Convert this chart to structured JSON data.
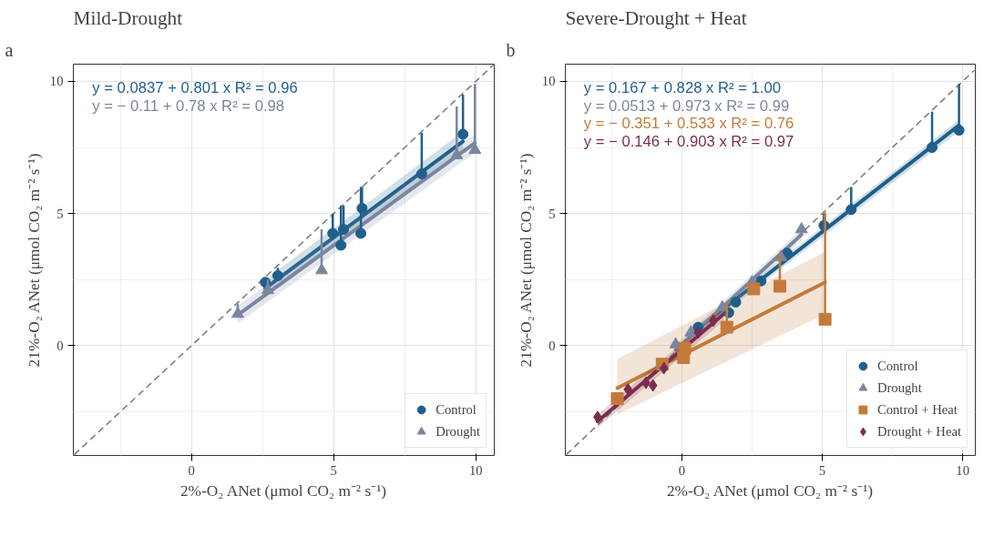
{
  "chart_data": [
    {
      "type": "scatter",
      "title": "Mild-Drought",
      "xlabel": "2%-O₂ ANet (μmol CO₂ m⁻² s⁻¹)",
      "ylabel": "21%-O₂ ANet (μmol CO₂ m⁻² s⁻¹)",
      "annotations": [
        "a",
        "y = 0.0837 + 0.801 x   R² = 0.96",
        "y = − 0.11 + 0.78 x   R² = 0.98"
      ],
      "xlim": [
        -4.15,
        10.65
      ],
      "ylim": [
        -4.15,
        10.65
      ],
      "xticks": [
        0,
        5,
        10
      ],
      "yticks": [
        0,
        5,
        10
      ],
      "grid": true,
      "legend": "bottom right",
      "series": [
        {
          "type": "line",
          "color": "#7f7f7f",
          "line_style": "dashed",
          "marker": "none",
          "x": [
            -4.1,
            10.6
          ],
          "values": [
            -4.1,
            10.6
          ]
        },
        {
          "type": "line",
          "color": "#1f5f8b",
          "marker": "none",
          "x": [
            2.6,
            9.55
          ],
          "values": [
            2.17,
            7.73
          ],
          "lower": [
            1.85,
            7.35
          ],
          "upper": [
            2.5,
            8.1
          ]
        },
        {
          "type": "line",
          "color": "#7a86a0",
          "marker": "none",
          "x": [
            1.63,
            9.97
          ],
          "values": [
            1.16,
            7.67
          ],
          "lower": [
            0.85,
            7.3
          ],
          "upper": [
            1.5,
            8.0
          ]
        },
        {
          "name": "Control",
          "color": "#1f5f8b",
          "marker": "circle",
          "x": [
            2.6,
            3.04,
            4.97,
            5.35,
            5.26,
            6.0,
            5.96,
            8.1,
            9.55
          ],
          "values": [
            2.4,
            2.65,
            4.25,
            4.4,
            3.8,
            5.2,
            4.25,
            6.5,
            8.0
          ],
          "errors": [
            null,
            [
              2.65,
              2.95
            ],
            [
              4.25,
              5.0
            ],
            [
              4.4,
              5.3
            ],
            [
              3.8,
              5.3
            ],
            [
              5.2,
              6.0
            ],
            [
              4.25,
              6.0
            ],
            [
              6.5,
              8.05
            ],
            [
              8.0,
              9.5
            ]
          ]
        },
        {
          "name": "Drought",
          "color": "#7a86a0",
          "marker": "triangle",
          "x": [
            1.63,
            2.69,
            4.58,
            9.33,
            9.97
          ],
          "values": [
            1.2,
            2.1,
            2.85,
            7.2,
            7.4
          ],
          "errors": [
            [
              1.2,
              1.6
            ],
            [
              2.1,
              2.5
            ],
            [
              2.85,
              4.4
            ],
            [
              7.2,
              9.05
            ],
            [
              7.4,
              9.9
            ]
          ]
        }
      ]
    },
    {
      "type": "scatter",
      "title": "Severe-Drought + Heat",
      "xlabel": "2%-O₂ ANet (μmol CO₂ m⁻² s⁻¹)",
      "ylabel": "21%-O₂ ANet (μmol CO₂ m⁻² s⁻¹)",
      "annotations": [
        "b",
        "y = 0.167 + 0.828 x   R² = 1.00",
        "y = 0.0513 + 0.973 x   R² = 0.99",
        "y = − 0.351 + 0.533 x   R² = 0.76",
        "y = − 0.146 + 0.903 x   R² = 0.97"
      ],
      "xlim": [
        -4.15,
        10.45
      ],
      "ylim": [
        -4.15,
        10.65
      ],
      "xticks": [
        0,
        5,
        10
      ],
      "yticks": [
        0,
        5,
        10
      ],
      "grid": true,
      "legend": "bottom right",
      "series": [
        {
          "type": "line",
          "color": "#7f7f7f",
          "line_style": "dashed",
          "marker": "none",
          "x": [
            -4.1,
            10.4
          ],
          "values": [
            -4.1,
            10.4
          ]
        },
        {
          "type": "line",
          "color": "#1f5f8b",
          "marker": "none",
          "x": [
            0.58,
            9.87
          ],
          "values": [
            0.65,
            8.34
          ],
          "lower": [
            0.5,
            8.1
          ],
          "upper": [
            0.8,
            8.55
          ]
        },
        {
          "type": "line",
          "color": "#7a86a0",
          "marker": "none",
          "x": [
            -0.22,
            4.26
          ],
          "values": [
            -0.16,
            4.2
          ],
          "lower": [
            -0.35,
            4.0
          ],
          "upper": [
            0.05,
            4.4
          ]
        },
        {
          "type": "line",
          "color": "#c47a3a",
          "marker": "none",
          "x": [
            -2.3,
            5.1
          ],
          "values": [
            -1.6,
            2.4
          ],
          "lower": [
            -2.6,
            1.2
          ],
          "upper": [
            -0.5,
            3.55
          ]
        },
        {
          "type": "line",
          "color": "#7a2d4f",
          "marker": "none",
          "x": [
            -3.0,
            1.5
          ],
          "values": [
            -2.86,
            1.21
          ],
          "lower": [
            -3.1,
            0.95
          ],
          "upper": [
            -2.6,
            1.45
          ]
        },
        {
          "name": "Control",
          "color": "#1f5f8b",
          "marker": "circle",
          "x": [
            9.87,
            8.91,
            6.03,
            5.06,
            3.75,
            2.82,
            1.92,
            1.67,
            0.58
          ],
          "values": [
            8.15,
            7.5,
            5.15,
            4.55,
            3.5,
            2.45,
            1.65,
            1.25,
            0.7
          ],
          "errors": [
            [
              8.15,
              9.9
            ],
            [
              7.5,
              8.85
            ],
            [
              5.15,
              6.0
            ],
            [
              4.55,
              5.0
            ],
            null,
            null,
            null,
            null,
            null
          ]
        },
        {
          "name": "Drought",
          "color": "#7a86a0",
          "marker": "triangle",
          "x": [
            4.26,
            3.53,
            2.5,
            1.44,
            0.32,
            -0.22
          ],
          "values": [
            4.4,
            3.35,
            2.4,
            1.45,
            0.5,
            0.05
          ]
        },
        {
          "name": "Control + Heat",
          "color": "#c47a3a",
          "marker": "square",
          "x": [
            5.1,
            3.49,
            2.56,
            1.6,
            0.1,
            0.06,
            -0.7,
            -2.3
          ],
          "values": [
            1.0,
            2.25,
            2.15,
            0.7,
            -0.1,
            -0.45,
            -0.7,
            -2.0
          ],
          "errors": [
            [
              1.0,
              5.05
            ],
            [
              2.25,
              3.5
            ],
            null,
            [
              0.7,
              1.6
            ],
            null,
            null,
            null,
            null
          ]
        },
        {
          "name": "Drought + Heat",
          "color": "#7a2d4f",
          "marker": "diamond",
          "x": [
            -3.0,
            -1.92,
            -1.28,
            -1.03,
            -0.64,
            0.58,
            1.12
          ],
          "values": [
            -2.7,
            -1.65,
            -1.4,
            -1.5,
            -0.85,
            0.5,
            0.95
          ]
        }
      ]
    }
  ]
}
